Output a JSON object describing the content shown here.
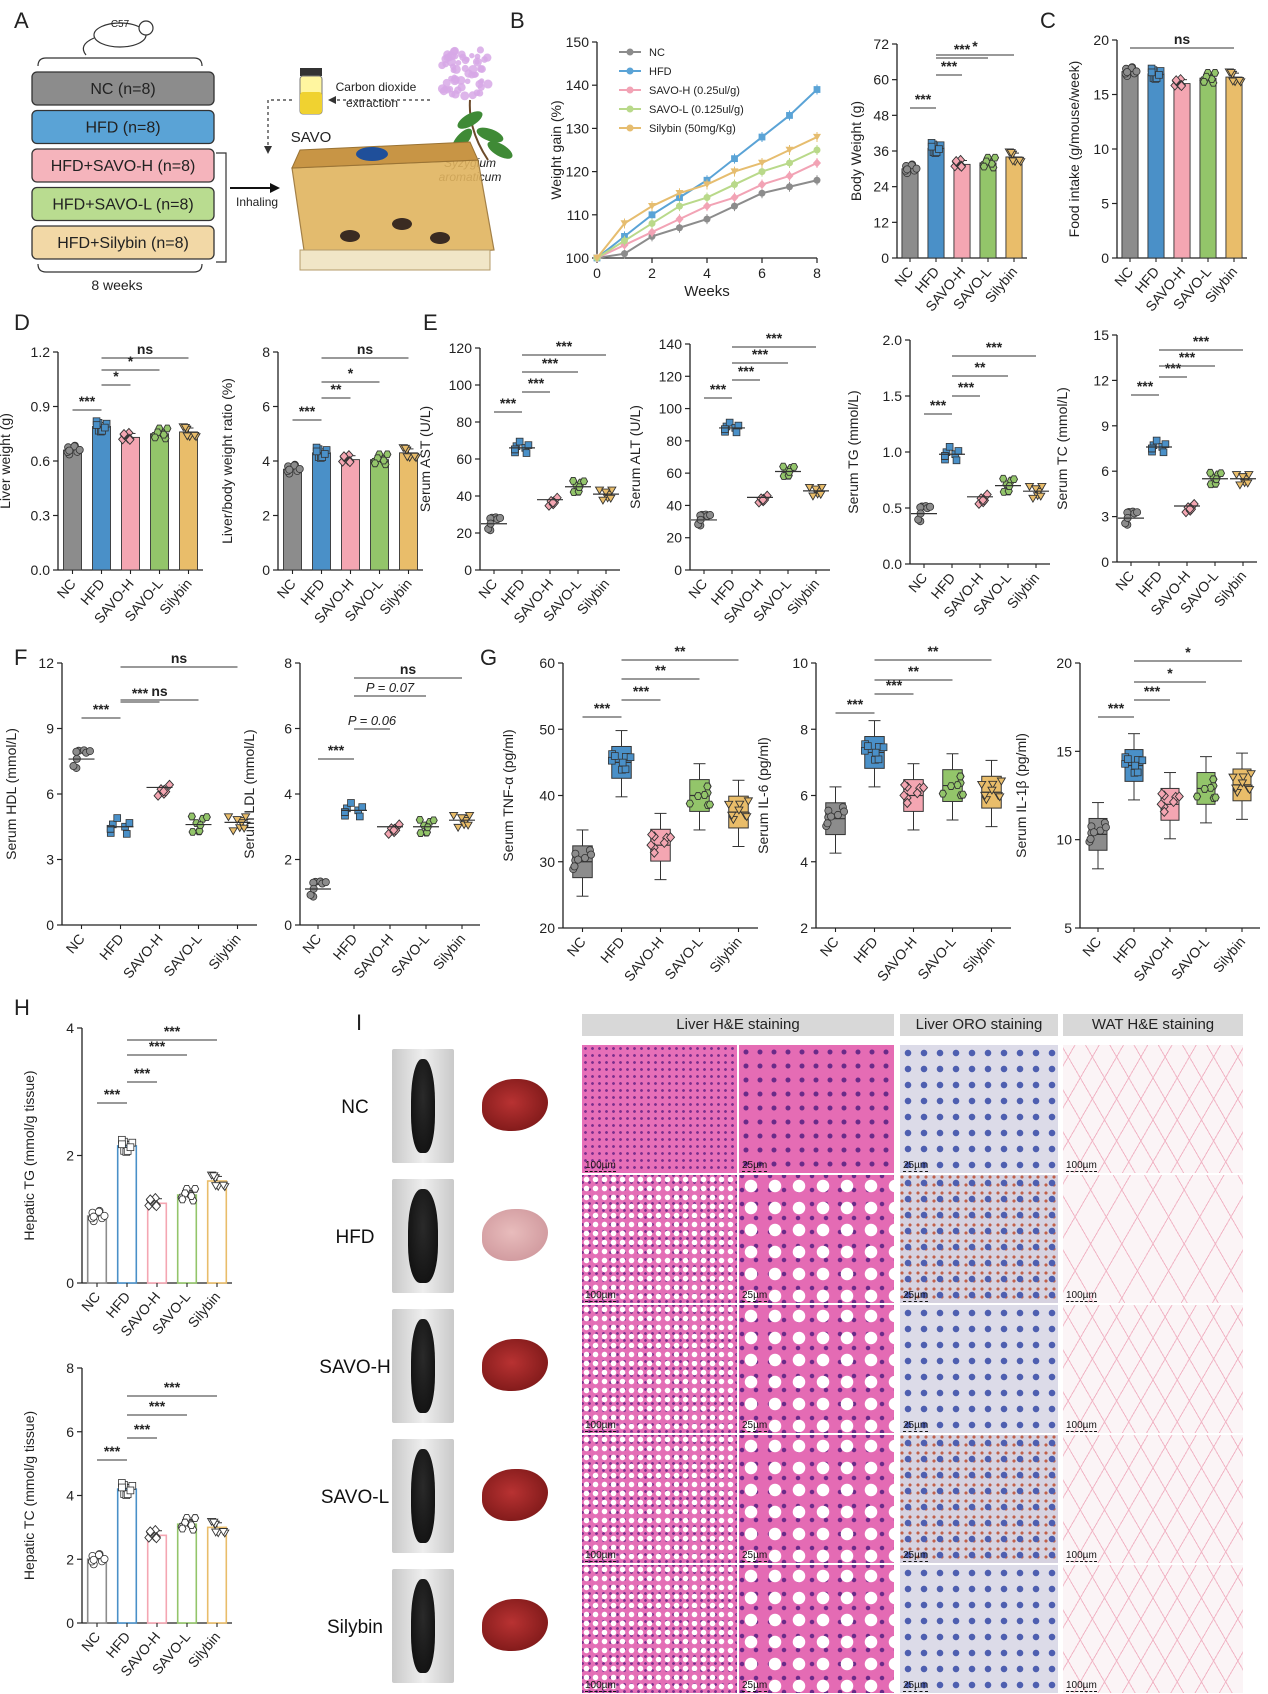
{
  "panel_letters": [
    "A",
    "B",
    "C",
    "D",
    "E",
    "F",
    "G",
    "H",
    "I"
  ],
  "groups": [
    "NC",
    "HFD",
    "SAVO-H",
    "SAVO-L",
    "Silybin"
  ],
  "colors": {
    "NC": "#8c8c8c",
    "HFD": "#4a90c8",
    "SAVO-H": "#f4a6b2",
    "SAVO-L": "#93c56a",
    "Silybin": "#e9bd6a",
    "line_NC": "#8c8c8c",
    "line_HFD": "#5aa3d6",
    "line_SAVOH": "#f2a3b5",
    "line_SAVOL": "#b9d98a",
    "line_Silybin": "#e6bd6f"
  },
  "schematic": {
    "strain": "C57",
    "boxes": [
      {
        "label": "NC (n=8)",
        "color": "#8c8c8c"
      },
      {
        "label": "HFD (n=8)",
        "color": "#5aa3d6"
      },
      {
        "label": "HFD+SAVO-H (n=8)",
        "color": "#f5b4bc"
      },
      {
        "label": "HFD+SAVO-L (n=8)",
        "color": "#b9dc90"
      },
      {
        "label": "HFD+Silybin (n=8)",
        "color": "#f2d8a6"
      }
    ],
    "duration": "8 weeks",
    "inhaling": "Inhaling",
    "savo": "SAVO",
    "extraction_line1": "Carbon dioxide",
    "extraction_line2": "extraction",
    "plant_line1": "Syzygium",
    "plant_line2": "aromaticum"
  },
  "histology": {
    "headers": [
      "Liver H&E staining",
      "Liver ORO staining",
      "WAT H&E staining"
    ],
    "rows": [
      "NC",
      "HFD",
      "SAVO-H",
      "SAVO-L",
      "Silybin"
    ],
    "scalebars": [
      "100µm",
      "25µm",
      "25µm",
      "100µm"
    ]
  },
  "chart_data": [
    {
      "id": "B1",
      "type": "line",
      "title": "",
      "xlabel": "Weeks",
      "ylabel": "Weight gain (%)",
      "xlim": [
        0,
        8
      ],
      "ylim": [
        100,
        150
      ],
      "xticks": [
        0,
        2,
        4,
        6,
        8
      ],
      "yticks": [
        100,
        110,
        120,
        130,
        140,
        150
      ],
      "x": [
        0,
        1,
        2,
        3,
        4,
        5,
        6,
        7,
        8
      ],
      "legend": "top-left",
      "series": [
        {
          "name": "NC",
          "values": [
            100,
            101,
            105,
            107,
            109,
            112,
            115,
            116.5,
            118
          ]
        },
        {
          "name": "HFD",
          "values": [
            100,
            105,
            110,
            114,
            118,
            123,
            128,
            133,
            139
          ]
        },
        {
          "name": "SAVO-H (0.25ul/g)",
          "values": [
            100,
            103,
            106,
            109,
            112,
            114,
            117,
            119,
            122
          ]
        },
        {
          "name": "SAVO-L (0.125ul/g)",
          "values": [
            100,
            104,
            108,
            112,
            114,
            117,
            120,
            122,
            125
          ]
        },
        {
          "name": "Silybin (50mg/Kg)",
          "values": [
            100,
            108,
            112,
            115,
            117,
            120,
            122,
            125,
            128
          ]
        }
      ]
    },
    {
      "id": "B2",
      "type": "bar",
      "ylabel": "Body Weight (g)",
      "categories": [
        "NC",
        "HFD",
        "SAVO-H",
        "SAVO-L",
        "Silybin"
      ],
      "values": [
        30,
        37,
        31.5,
        32,
        34
      ],
      "ylim": [
        0,
        72
      ],
      "yticks": [
        0,
        12,
        24,
        36,
        48,
        60,
        72
      ],
      "significance": [
        {
          "from": "NC",
          "to": "HFD",
          "label": "***"
        },
        {
          "from": "HFD",
          "to": "SAVO-H",
          "label": "***"
        },
        {
          "from": "HFD",
          "to": "SAVO-L",
          "label": "***"
        },
        {
          "from": "HFD",
          "to": "Silybin",
          "label": "*"
        }
      ]
    },
    {
      "id": "C",
      "type": "bar",
      "ylabel": "Food intake (g/mouse/week)",
      "categories": [
        "NC",
        "HFD",
        "SAVO-H",
        "SAVO-L",
        "Silybin"
      ],
      "values": [
        17.1,
        16.9,
        16.0,
        16.5,
        16.6
      ],
      "ylim": [
        0,
        20
      ],
      "yticks": [
        0,
        5,
        10,
        15,
        20
      ],
      "significance": [
        {
          "from": "NC",
          "to": "Silybin",
          "label": "ns"
        }
      ]
    },
    {
      "id": "D1",
      "type": "bar",
      "ylabel": "Liver weight (g)",
      "categories": [
        "NC",
        "HFD",
        "SAVO-H",
        "SAVO-L",
        "Silybin"
      ],
      "values": [
        0.66,
        0.79,
        0.73,
        0.75,
        0.76
      ],
      "ylim": [
        0,
        1.2
      ],
      "yticks": [
        0,
        0.3,
        0.6,
        0.9,
        1.2
      ],
      "significance": [
        {
          "from": "NC",
          "to": "HFD",
          "label": "***"
        },
        {
          "from": "HFD",
          "to": "SAVO-H",
          "label": "*"
        },
        {
          "from": "HFD",
          "to": "SAVO-L",
          "label": "*"
        },
        {
          "from": "HFD",
          "to": "Silybin",
          "label": "ns"
        }
      ]
    },
    {
      "id": "D2",
      "type": "bar",
      "ylabel": "Liver/body weight ratio (%)",
      "categories": [
        "NC",
        "HFD",
        "SAVO-H",
        "SAVO-L",
        "Silybin"
      ],
      "values": [
        3.7,
        4.3,
        4.05,
        4.05,
        4.3
      ],
      "ylim": [
        0,
        8
      ],
      "yticks": [
        0,
        2,
        4,
        6,
        8
      ],
      "significance": [
        {
          "from": "NC",
          "to": "HFD",
          "label": "***"
        },
        {
          "from": "HFD",
          "to": "SAVO-H",
          "label": "**"
        },
        {
          "from": "HFD",
          "to": "SAVO-L",
          "label": "*"
        },
        {
          "from": "HFD",
          "to": "Silybin",
          "label": "ns"
        }
      ]
    },
    {
      "id": "E1",
      "type": "scatter",
      "ylabel": "Serum AST (U/L)",
      "categories": [
        "NC",
        "HFD",
        "SAVO-H",
        "SAVO-L",
        "Silybin"
      ],
      "values": [
        25,
        66,
        38,
        45,
        41
      ],
      "ylim": [
        0,
        120
      ],
      "yticks": [
        0,
        20,
        40,
        60,
        80,
        100,
        120
      ],
      "significance": [
        {
          "from": "NC",
          "to": "HFD",
          "label": "***"
        },
        {
          "from": "HFD",
          "to": "SAVO-H",
          "label": "***"
        },
        {
          "from": "HFD",
          "to": "SAVO-L",
          "label": "***"
        },
        {
          "from": "HFD",
          "to": "Silybin",
          "label": "***"
        }
      ]
    },
    {
      "id": "E2",
      "type": "scatter",
      "ylabel": "Serum ALT (U/L)",
      "categories": [
        "NC",
        "HFD",
        "SAVO-H",
        "SAVO-L",
        "Silybin"
      ],
      "values": [
        31,
        88,
        45,
        61,
        49
      ],
      "ylim": [
        0,
        140
      ],
      "yticks": [
        0,
        20,
        40,
        60,
        80,
        100,
        120,
        140
      ],
      "significance": [
        {
          "from": "NC",
          "to": "HFD",
          "label": "***"
        },
        {
          "from": "HFD",
          "to": "SAVO-H",
          "label": "***"
        },
        {
          "from": "HFD",
          "to": "SAVO-L",
          "label": "***"
        },
        {
          "from": "HFD",
          "to": "Silybin",
          "label": "***"
        }
      ]
    },
    {
      "id": "E3",
      "type": "scatter",
      "ylabel": "Serum TG (mmol/L)",
      "categories": [
        "NC",
        "HFD",
        "SAVO-H",
        "SAVO-L",
        "Silybin"
      ],
      "values": [
        0.45,
        0.98,
        0.6,
        0.7,
        0.65
      ],
      "ylim": [
        0,
        2.0
      ],
      "yticks": [
        0,
        0.5,
        1.0,
        1.5,
        2.0
      ],
      "significance": [
        {
          "from": "NC",
          "to": "HFD",
          "label": "***"
        },
        {
          "from": "HFD",
          "to": "SAVO-H",
          "label": "***"
        },
        {
          "from": "HFD",
          "to": "SAVO-L",
          "label": "**"
        },
        {
          "from": "HFD",
          "to": "Silybin",
          "label": "***"
        }
      ]
    },
    {
      "id": "E4",
      "type": "scatter",
      "ylabel": "Serum TC (mmol/L)",
      "categories": [
        "NC",
        "HFD",
        "SAVO-H",
        "SAVO-L",
        "Silybin"
      ],
      "values": [
        2.9,
        7.6,
        3.7,
        5.5,
        5.5
      ],
      "ylim": [
        0,
        15
      ],
      "yticks": [
        0,
        3,
        6,
        9,
        12,
        15
      ],
      "significance": [
        {
          "from": "NC",
          "to": "HFD",
          "label": "***"
        },
        {
          "from": "HFD",
          "to": "SAVO-H",
          "label": "***"
        },
        {
          "from": "HFD",
          "to": "SAVO-L",
          "label": "***"
        },
        {
          "from": "HFD",
          "to": "Silybin",
          "label": "***"
        }
      ]
    },
    {
      "id": "F1",
      "type": "scatter",
      "ylabel": "Serum HDL (mmol/L)",
      "categories": [
        "NC",
        "HFD",
        "SAVO-H",
        "SAVO-L",
        "Silybin"
      ],
      "values": [
        7.6,
        4.5,
        6.3,
        4.6,
        4.7
      ],
      "ylim": [
        0,
        12
      ],
      "yticks": [
        0,
        3,
        6,
        9,
        12
      ],
      "significance": [
        {
          "from": "NC",
          "to": "HFD",
          "label": "***"
        },
        {
          "from": "HFD",
          "to": "SAVO-H",
          "label": "***"
        },
        {
          "from": "HFD",
          "to": "SAVO-L",
          "label": "ns"
        },
        {
          "from": "HFD",
          "to": "Silybin",
          "label": "ns"
        }
      ]
    },
    {
      "id": "F2",
      "type": "scatter",
      "ylabel": "Serum LDL (mmol/L)",
      "categories": [
        "NC",
        "HFD",
        "SAVO-H",
        "SAVO-L",
        "Silybin"
      ],
      "values": [
        1.1,
        3.5,
        3.0,
        3.0,
        3.2
      ],
      "ylim": [
        0,
        8
      ],
      "yticks": [
        0,
        2,
        4,
        6,
        8
      ],
      "significance": [
        {
          "from": "NC",
          "to": "HFD",
          "label": "***"
        },
        {
          "from": "HFD",
          "to": "SAVO-H",
          "label": "P = 0.06"
        },
        {
          "from": "HFD",
          "to": "SAVO-L",
          "label": "P = 0.07"
        },
        {
          "from": "HFD",
          "to": "Silybin",
          "label": "ns"
        }
      ]
    },
    {
      "id": "H1",
      "type": "box",
      "ylabel": "Serum TNF-α (pg/ml)",
      "categories": [
        "NC",
        "HFD",
        "SAVO-H",
        "SAVO-L",
        "Silybin"
      ],
      "values": [
        30,
        45,
        32.5,
        40,
        37.5
      ],
      "ylim": [
        20,
        60
      ],
      "yticks": [
        20,
        30,
        40,
        50,
        60
      ],
      "significance": [
        {
          "from": "NC",
          "to": "HFD",
          "label": "***"
        },
        {
          "from": "HFD",
          "to": "SAVO-H",
          "label": "***"
        },
        {
          "from": "HFD",
          "to": "SAVO-L",
          "label": "**"
        },
        {
          "from": "HFD",
          "to": "Silybin",
          "label": "**"
        }
      ]
    },
    {
      "id": "H2",
      "type": "box",
      "ylabel": "Serum IL-6 (pg/ml)",
      "categories": [
        "NC",
        "HFD",
        "SAVO-H",
        "SAVO-L",
        "Silybin"
      ],
      "values": [
        5.3,
        7.3,
        6.0,
        6.3,
        6.1
      ],
      "ylim": [
        2,
        10
      ],
      "yticks": [
        2,
        4,
        6,
        8,
        10
      ],
      "significance": [
        {
          "from": "NC",
          "to": "HFD",
          "label": "***"
        },
        {
          "from": "HFD",
          "to": "SAVO-H",
          "label": "***"
        },
        {
          "from": "HFD",
          "to": "SAVO-L",
          "label": "**"
        },
        {
          "from": "HFD",
          "to": "Silybin",
          "label": "**"
        }
      ]
    },
    {
      "id": "H3",
      "type": "box",
      "ylabel": "Serum IL-1β (pg/ml)",
      "categories": [
        "NC",
        "HFD",
        "SAVO-H",
        "SAVO-L",
        "Silybin"
      ],
      "values": [
        10.3,
        14.2,
        12.0,
        12.9,
        13.1
      ],
      "ylim": [
        5,
        20
      ],
      "yticks": [
        5,
        10,
        15,
        20
      ],
      "significance": [
        {
          "from": "NC",
          "to": "HFD",
          "label": "***"
        },
        {
          "from": "HFD",
          "to": "SAVO-H",
          "label": "***"
        },
        {
          "from": "HFD",
          "to": "SAVO-L",
          "label": "*"
        },
        {
          "from": "HFD",
          "to": "Silybin",
          "label": "*"
        }
      ]
    },
    {
      "id": "G1",
      "type": "bar",
      "ylabel": "Hepatic TG (mmol/g tissue)",
      "categories": [
        "NC",
        "HFD",
        "SAVO-H",
        "SAVO-L",
        "Silybin"
      ],
      "values": [
        1.05,
        2.15,
        1.25,
        1.38,
        1.6
      ],
      "ylim": [
        0,
        4
      ],
      "yticks": [
        0,
        2,
        4
      ],
      "significance": [
        {
          "from": "NC",
          "to": "HFD",
          "label": "***"
        },
        {
          "from": "HFD",
          "to": "SAVO-H",
          "label": "***"
        },
        {
          "from": "HFD",
          "to": "SAVO-L",
          "label": "***"
        },
        {
          "from": "HFD",
          "to": "Silybin",
          "label": "***"
        }
      ]
    },
    {
      "id": "G2",
      "type": "bar",
      "ylabel": "Hepatic TC (mmol/g tissue)",
      "categories": [
        "NC",
        "HFD",
        "SAVO-H",
        "SAVO-L",
        "Silybin"
      ],
      "values": [
        2.0,
        4.2,
        2.75,
        3.1,
        3.0
      ],
      "ylim": [
        0,
        8
      ],
      "yticks": [
        0,
        2,
        4,
        6,
        8
      ],
      "significance": [
        {
          "from": "NC",
          "to": "HFD",
          "label": "***"
        },
        {
          "from": "HFD",
          "to": "SAVO-H",
          "label": "***"
        },
        {
          "from": "HFD",
          "to": "SAVO-L",
          "label": "***"
        },
        {
          "from": "HFD",
          "to": "Silybin",
          "label": "***"
        }
      ]
    }
  ]
}
